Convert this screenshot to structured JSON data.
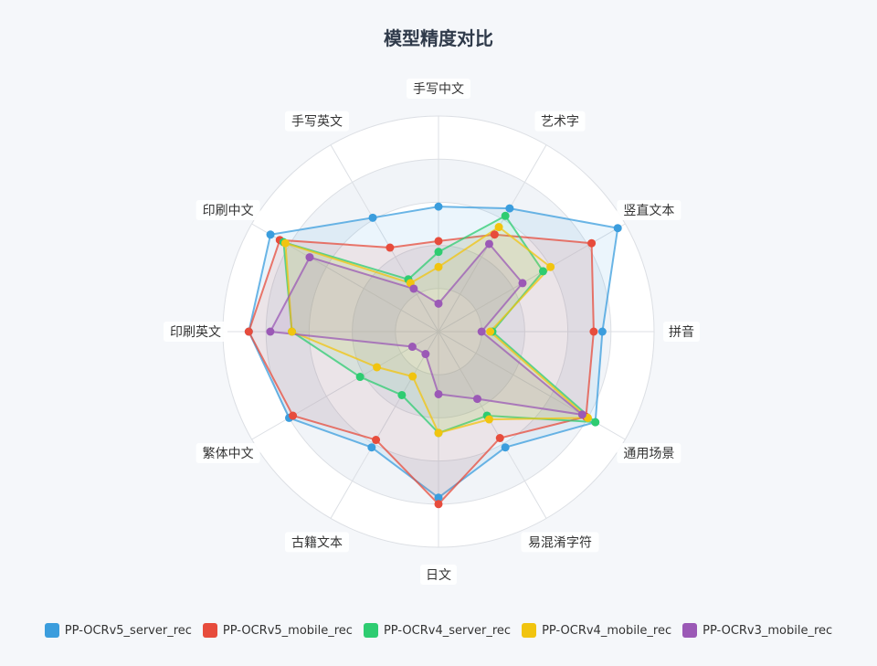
{
  "chart_data": {
    "type": "radar",
    "title": "模型精度对比",
    "axes": [
      "手写中文",
      "艺术字",
      "竖直文本",
      "拼音",
      "通用场景",
      "易混淆字符",
      "日文",
      "古籍文本",
      "繁体中文",
      "印刷英文",
      "印刷中文",
      "手写英文"
    ],
    "range": [
      0,
      1
    ],
    "grid": true,
    "legend_position": "bottom",
    "series": [
      {
        "name": "PP-OCRv5_server_rec",
        "color": "#3b9ddd",
        "values": [
          0.58,
          0.66,
          0.96,
          0.76,
          0.84,
          0.62,
          0.77,
          0.62,
          0.8,
          0.88,
          0.9,
          0.61
        ]
      },
      {
        "name": "PP-OCRv5_mobile_rec",
        "color": "#e74c3c",
        "values": [
          0.42,
          0.52,
          0.82,
          0.72,
          0.79,
          0.57,
          0.8,
          0.58,
          0.78,
          0.88,
          0.85,
          0.45
        ]
      },
      {
        "name": "PP-OCRv4_server_rec",
        "color": "#2ecc71",
        "values": [
          0.37,
          0.62,
          0.56,
          0.25,
          0.84,
          0.45,
          0.47,
          0.34,
          0.42,
          0.68,
          0.83,
          0.28
        ]
      },
      {
        "name": "PP-OCRv4_mobile_rec",
        "color": "#f1c40f",
        "values": [
          0.3,
          0.56,
          0.6,
          0.24,
          0.8,
          0.47,
          0.47,
          0.24,
          0.33,
          0.68,
          0.82,
          0.26
        ]
      },
      {
        "name": "PP-OCRv3_mobile_rec",
        "color": "#9b59b6",
        "values": [
          0.13,
          0.47,
          0.45,
          0.2,
          0.77,
          0.36,
          0.29,
          0.12,
          0.14,
          0.78,
          0.69,
          0.23
        ]
      }
    ]
  }
}
